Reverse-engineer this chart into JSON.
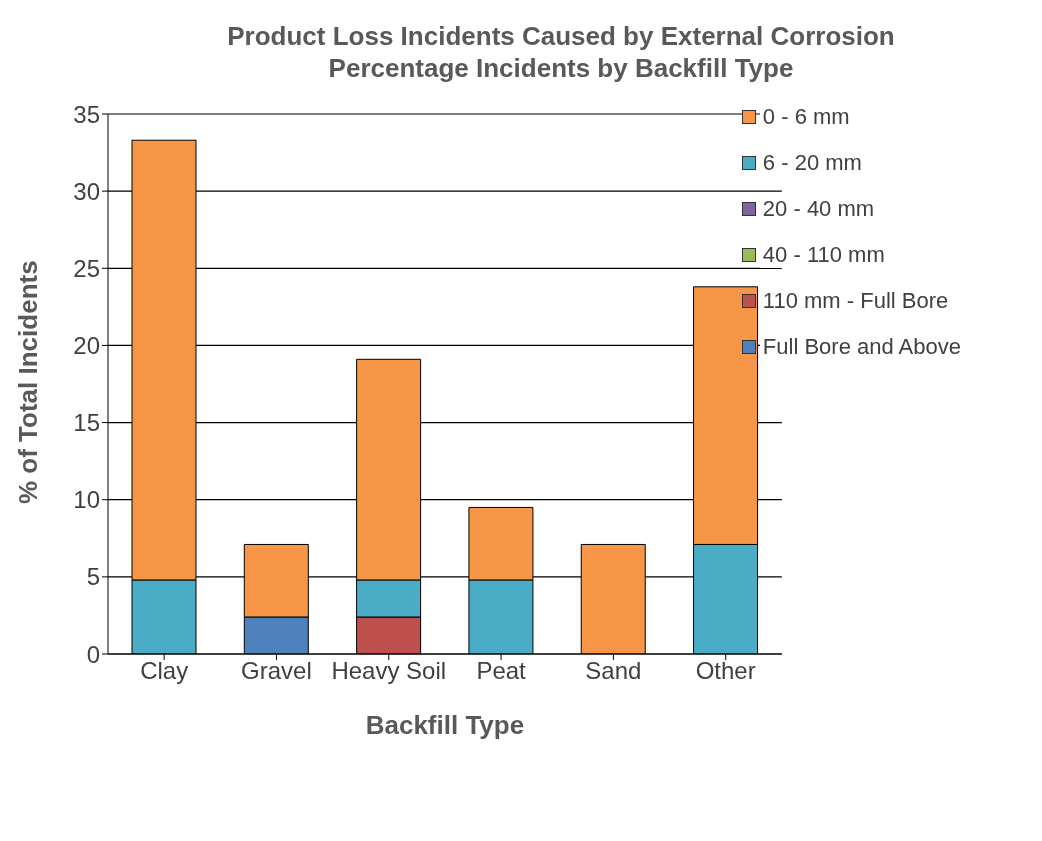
{
  "chart_data": {
    "type": "bar",
    "stacked": true,
    "title": "Product Loss Incidents Caused by External Corrosion",
    "subtitle": "Percentage Incidents by Backfill Type",
    "xlabel": "Backfill Type",
    "ylabel": "% of Total Incidents",
    "categories": [
      "Clay",
      "Gravel",
      "Heavy Soil",
      "Peat",
      "Sand",
      "Other"
    ],
    "series": [
      {
        "name": "Full Bore and Above",
        "color": "#4f81bd",
        "values": [
          null,
          2.4,
          null,
          null,
          null,
          null
        ]
      },
      {
        "name": "110 mm - Full Bore",
        "color": "#c0504d",
        "values": [
          null,
          null,
          2.4,
          null,
          null,
          null
        ]
      },
      {
        "name": "40 - 110 mm",
        "color": "#9bbb59",
        "values": [
          null,
          null,
          null,
          null,
          null,
          null
        ]
      },
      {
        "name": "20 - 40 mm",
        "color": "#8064a2",
        "values": [
          null,
          null,
          null,
          null,
          null,
          null
        ]
      },
      {
        "name": "6 - 20 mm",
        "color": "#4bacc6",
        "values": [
          4.8,
          null,
          2.4,
          4.8,
          null,
          7.1
        ]
      },
      {
        "name": "0 - 6 mm",
        "color": "#f79646",
        "values": [
          28.5,
          4.7,
          14.3,
          4.7,
          7.1,
          16.7
        ]
      }
    ],
    "ylim": [
      0,
      35
    ],
    "yticks": [
      0,
      5,
      10,
      15,
      20,
      25,
      30,
      35
    ],
    "grid": "y",
    "legend": "top right"
  }
}
